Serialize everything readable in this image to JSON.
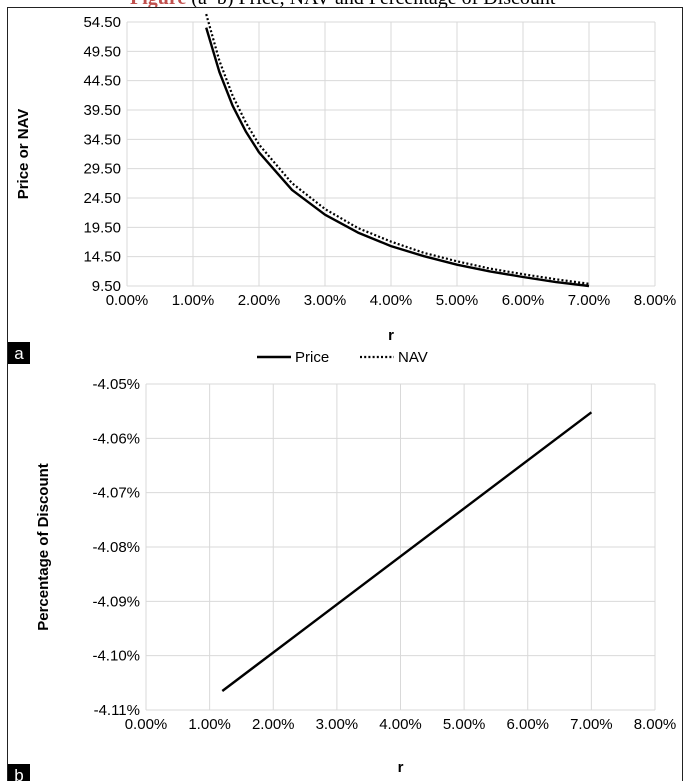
{
  "caption": {
    "bold": "Figure",
    "rest": " (a–b) Price, NAV and Percentage of Discount"
  },
  "chart_data": [
    {
      "type": "line",
      "panel_label": "a",
      "xlabel": "r",
      "ylabel": "Price or NAV",
      "xlim": [
        0,
        8
      ],
      "ylim": [
        9.5,
        56.5
      ],
      "x_tick_labels": [
        "0.00%",
        "1.00%",
        "2.00%",
        "3.00%",
        "4.00%",
        "5.00%",
        "6.00%",
        "7.00%",
        "8.00%"
      ],
      "y_tick_labels": [
        "9.50",
        "14.50",
        "19.50",
        "24.50",
        "29.50",
        "34.50",
        "39.50",
        "44.50",
        "49.50",
        "54.50"
      ],
      "grid": true,
      "legend": {
        "placement": "bottom",
        "entries": [
          "Price",
          "NAV"
        ]
      },
      "series": [
        {
          "name": "Price",
          "style": "solid",
          "color": "#000000",
          "x": [
            1.2,
            1.4,
            1.6,
            1.8,
            2.0,
            2.5,
            3.0,
            3.5,
            4.0,
            4.5,
            5.0,
            5.5,
            6.0,
            6.5,
            7.0
          ],
          "y": [
            55.5,
            47.6,
            41.6,
            37.0,
            33.3,
            26.6,
            22.2,
            19.0,
            16.6,
            14.8,
            13.3,
            12.1,
            11.1,
            10.2,
            9.5
          ]
        },
        {
          "name": "NAV",
          "style": "dotted",
          "color": "#000000",
          "x": [
            1.2,
            1.4,
            1.6,
            1.8,
            2.0,
            2.5,
            3.0,
            3.5,
            4.0,
            4.5,
            5.0,
            5.5,
            6.0,
            6.5,
            7.0
          ],
          "y": [
            57.9,
            49.6,
            43.4,
            38.6,
            34.7,
            27.8,
            23.2,
            19.8,
            17.4,
            15.4,
            13.9,
            12.6,
            11.6,
            10.7,
            9.9
          ]
        }
      ]
    },
    {
      "type": "line",
      "panel_label": "b",
      "xlabel": "r",
      "ylabel": "Percentage of Discount",
      "xlim": [
        0,
        8
      ],
      "ylim": [
        -4.11,
        -4.05
      ],
      "x_tick_labels": [
        "0.00%",
        "1.00%",
        "2.00%",
        "3.00%",
        "4.00%",
        "5.00%",
        "6.00%",
        "7.00%",
        "8.00%"
      ],
      "y_tick_labels": [
        "-4.11%",
        "-4.10%",
        "-4.09%",
        "-4.08%",
        "-4.07%",
        "-4.06%",
        "-4.05%"
      ],
      "grid": true,
      "series": [
        {
          "name": "",
          "style": "solid",
          "color": "#000000",
          "x": [
            1.2,
            7.0
          ],
          "y": [
            -4.1065,
            -4.0552
          ]
        }
      ]
    }
  ]
}
